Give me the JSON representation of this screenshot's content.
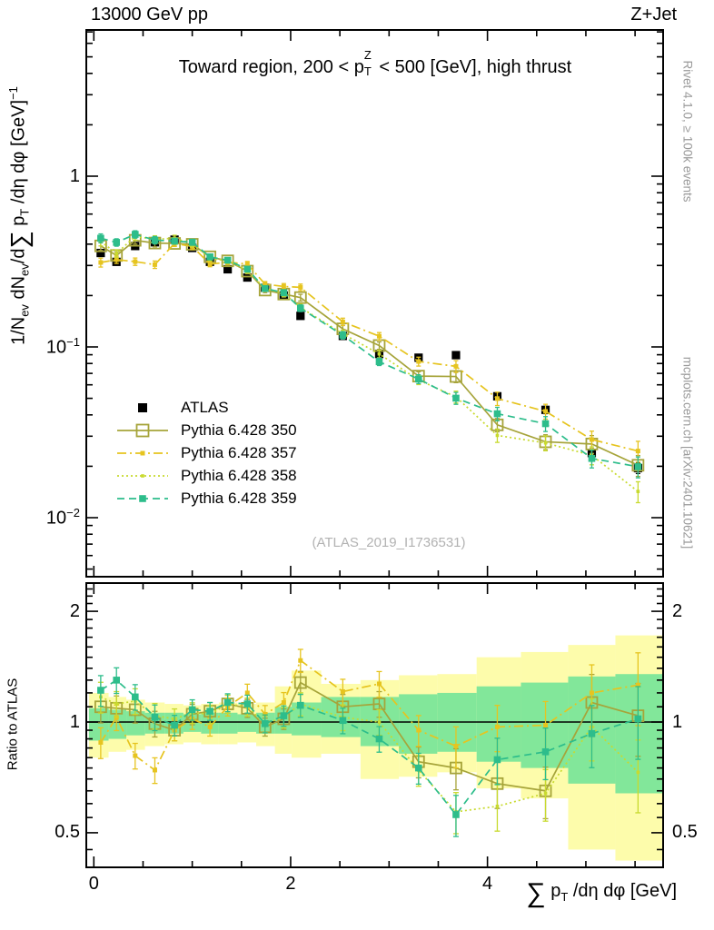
{
  "header": {
    "left": "13000 GeV pp",
    "right": "Z+Jet"
  },
  "side_texts": {
    "top_right": "Rivet 4.1.0, ≥ 100k events",
    "bottom_right": "mcplots.cern.ch [arXiv:2401.10621]"
  },
  "watermark": "(ATLAS_2019_I1736531)",
  "title": {
    "part1": "Toward region, 200 < p",
    "p_sup": "Z",
    "p_sub": "T",
    "part2": " < 500 [GeV], high thrust"
  },
  "ylabel_main": {
    "p1": "1/N",
    "s1": "ev",
    "p2": " dN",
    "s2": "ev",
    "p3": "/d",
    "sum": "∑",
    "p4": " p",
    "s3": "T",
    "p5": " /dη dφ  [GeV]",
    "sup": "−1"
  },
  "ylabel_ratio": "Ratio to ATLAS",
  "xlabel": {
    "sum": "∑",
    "p": " p",
    "sub": "T",
    "rest": " /dη dφ [GeV]"
  },
  "chart_data": {
    "type": "line",
    "title": "Toward region, 200 < pT(Z) < 500 [GeV], high thrust",
    "xlabel": "sum pT /deta dphi [GeV]",
    "ylabel": "1/Nev dNev/d sum pT /deta dphi [GeV]^-1",
    "ratio_label": "Ratio to ATLAS",
    "xlim": [
      -0.074,
      5.785
    ],
    "ylim_main": [
      0.0046,
      7.2
    ],
    "ylim_ratio": [
      0.4,
      2.39
    ],
    "x_ticks": [
      {
        "v": 0,
        "label": "0"
      },
      {
        "v": 2,
        "label": "2"
      },
      {
        "v": 4,
        "label": "4"
      }
    ],
    "x_minor_step": 0.5,
    "y_ticks_main": [
      {
        "v": 1,
        "label": "1"
      },
      {
        "v": 0.1,
        "label": "10^{−1}"
      },
      {
        "v": 0.01,
        "label": "10^{−2}"
      }
    ],
    "y_ticks_ratio": [
      {
        "v": 2,
        "label": "2"
      },
      {
        "v": 1,
        "label": "1"
      },
      {
        "v": 0.5,
        "label": "0.5"
      }
    ],
    "x": [
      0.07,
      0.23,
      0.42,
      0.62,
      0.82,
      1.0,
      1.18,
      1.36,
      1.56,
      1.74,
      1.93,
      2.1,
      2.53,
      2.9,
      3.3,
      3.68,
      4.1,
      4.59,
      5.06,
      5.53
    ],
    "bin_edges": [
      -0.05,
      0.15,
      0.33,
      0.52,
      0.72,
      0.91,
      1.09,
      1.27,
      1.46,
      1.65,
      1.84,
      2.01,
      2.31,
      2.71,
      3.1,
      3.49,
      3.89,
      4.34,
      4.82,
      5.3,
      5.785
    ],
    "atlas": {
      "name": "ATLAS",
      "color": "#000000",
      "marker": "filled-square-big",
      "values": [
        0.355,
        0.315,
        0.39,
        0.41,
        0.425,
        0.38,
        0.315,
        0.285,
        0.255,
        0.222,
        0.2,
        0.152,
        0.116,
        0.091,
        0.0865,
        0.0895,
        0.0514,
        0.0428,
        0.0239,
        0.0195
      ],
      "err_frac": [
        0.02,
        0.02,
        0.02,
        0.02,
        0.02,
        0.02,
        0.02,
        0.02,
        0.02,
        0.025,
        0.025,
        0.03,
        0.03,
        0.035,
        0.04,
        0.04,
        0.05,
        0.05,
        0.06,
        0.07
      ]
    },
    "series": [
      {
        "name": "Pythia 6.428 350",
        "color": "#a6a43a",
        "dash": "solid",
        "marker": "open-square",
        "ratio": [
          1.1,
          1.09,
          1.08,
          0.99,
          0.95,
          1.05,
          1.07,
          1.12,
          1.09,
          0.97,
          1.02,
          1.28,
          1.1,
          1.12,
          0.78,
          0.75,
          0.68,
          0.65,
          1.13,
          1.04
        ]
      },
      {
        "name": "Pythia 6.428 357",
        "color": "#e6c41f",
        "dash": "dashdot",
        "marker": "small-square",
        "ratio": [
          0.88,
          1.03,
          0.81,
          0.74,
          0.95,
          1.02,
          0.97,
          1.1,
          1.2,
          1.05,
          1.13,
          1.47,
          1.21,
          1.27,
          0.95,
          0.86,
          0.97,
          0.98,
          1.2,
          1.26
        ]
      },
      {
        "name": "Pythia 6.428 358",
        "color": "#c8da2e",
        "dash": "dot",
        "marker": "small-dot",
        "ratio": [
          1.17,
          1.12,
          1.14,
          1.04,
          1.02,
          1.06,
          1.05,
          1.12,
          1.1,
          0.99,
          1.03,
          1.12,
          1.03,
          1.0,
          0.74,
          0.57,
          0.59,
          0.64,
          0.97,
          0.73
        ]
      },
      {
        "name": "Pythia 6.428 359",
        "color": "#2dbd8b",
        "dash": "dash",
        "marker": "filled-square",
        "ratio": [
          1.22,
          1.3,
          1.17,
          1.03,
          0.98,
          1.08,
          1.07,
          1.13,
          1.12,
          0.99,
          1.04,
          1.11,
          1.01,
          0.9,
          0.75,
          0.56,
          0.79,
          0.83,
          0.93,
          1.02
        ]
      }
    ],
    "mc_err_frac": [
      0.06,
      0.05,
      0.05,
      0.05,
      0.04,
      0.04,
      0.035,
      0.035,
      0.035,
      0.035,
      0.04,
      0.045,
      0.05,
      0.05,
      0.06,
      0.08,
      0.09,
      0.1,
      0.12,
      0.14
    ],
    "bands": {
      "yellow_color": "#fdfcab",
      "green_color": "#82e79a",
      "yellow": [
        [
          0.8,
          1.2
        ],
        [
          0.83,
          1.17
        ],
        [
          0.84,
          1.15
        ],
        [
          0.86,
          1.13
        ],
        [
          0.87,
          1.12
        ],
        [
          0.88,
          1.11
        ],
        [
          0.87,
          1.12
        ],
        [
          0.87,
          1.13
        ],
        [
          0.88,
          1.12
        ],
        [
          0.86,
          1.13
        ],
        [
          0.82,
          1.25
        ],
        [
          0.8,
          1.38
        ],
        [
          0.82,
          1.27
        ],
        [
          0.7,
          1.3
        ],
        [
          0.71,
          1.34
        ],
        [
          0.73,
          1.35
        ],
        [
          0.66,
          1.5
        ],
        [
          0.62,
          1.55
        ],
        [
          0.45,
          1.62
        ],
        [
          0.42,
          1.72
        ]
      ],
      "green": [
        [
          0.89,
          1.09
        ],
        [
          0.9,
          1.08
        ],
        [
          0.92,
          1.07
        ],
        [
          0.93,
          1.06
        ],
        [
          0.93,
          1.06
        ],
        [
          0.94,
          1.05
        ],
        [
          0.93,
          1.06
        ],
        [
          0.93,
          1.06
        ],
        [
          0.94,
          1.05
        ],
        [
          0.93,
          1.06
        ],
        [
          0.93,
          1.1
        ],
        [
          0.92,
          1.13
        ],
        [
          0.91,
          1.17
        ],
        [
          0.86,
          1.17
        ],
        [
          0.82,
          1.19
        ],
        [
          0.83,
          1.2
        ],
        [
          0.78,
          1.25
        ],
        [
          0.75,
          1.28
        ],
        [
          0.68,
          1.33
        ],
        [
          0.64,
          1.35
        ]
      ]
    },
    "legend_position": "left-middle",
    "grid": false
  }
}
